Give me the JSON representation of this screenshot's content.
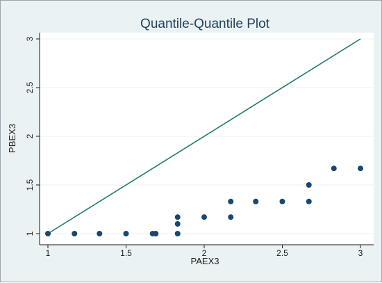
{
  "chart_data": {
    "type": "scatter",
    "title": "Quantile-Quantile Plot",
    "xlabel": "PAEX3",
    "ylabel": "PBEX3",
    "xlim": [
      1,
      3
    ],
    "ylim": [
      1,
      3
    ],
    "xticks": [
      1,
      1.5,
      2,
      2.5,
      3
    ],
    "yticks": [
      1,
      1.5,
      2,
      2.5,
      3
    ],
    "xtick_labels": [
      "1",
      "1.5",
      "2",
      "2.5",
      "3"
    ],
    "ytick_labels": [
      "1",
      "1.5",
      "2",
      "2.5",
      "3"
    ],
    "grid": "horizontal",
    "reference_line": {
      "x": [
        1,
        3
      ],
      "y": [
        1,
        3
      ]
    },
    "series": [
      {
        "points": [
          [
            1.0,
            1.0
          ],
          [
            1.17,
            1.0
          ],
          [
            1.33,
            1.0
          ],
          [
            1.5,
            1.0
          ],
          [
            1.67,
            1.0
          ],
          [
            1.69,
            1.0
          ],
          [
            1.83,
            1.0
          ],
          [
            1.83,
            1.1
          ],
          [
            1.83,
            1.17
          ],
          [
            2.0,
            1.17
          ],
          [
            2.17,
            1.17
          ],
          [
            2.17,
            1.33
          ],
          [
            2.33,
            1.33
          ],
          [
            2.5,
            1.33
          ],
          [
            2.67,
            1.33
          ],
          [
            2.67,
            1.5
          ],
          [
            2.83,
            1.67
          ],
          [
            3.0,
            1.67
          ]
        ]
      }
    ],
    "colors": {
      "background": "#eaf2f3",
      "plot_background": "#ffffff",
      "grid": "#eef1f3",
      "marker": "#1a476f",
      "reference_line": "#1e7b6a",
      "title": "#1f3f5a"
    }
  }
}
